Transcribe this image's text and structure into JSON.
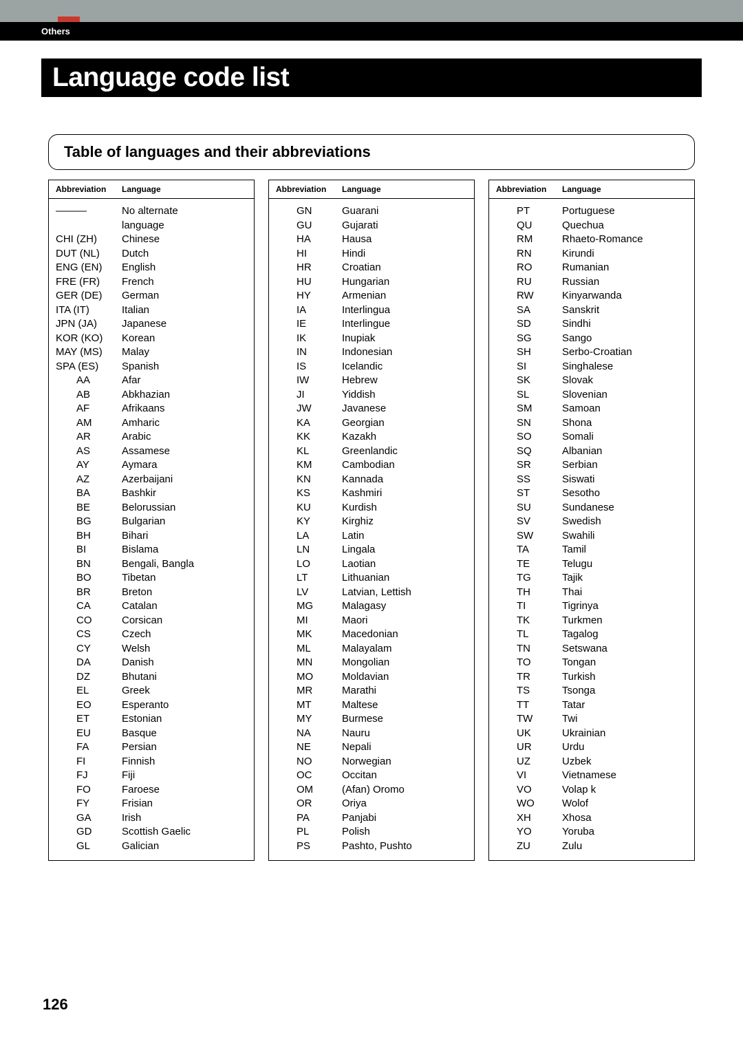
{
  "section_label": "Others",
  "title": "Language code list",
  "subtitle": "Table of languages and their abbreviations",
  "page_number": "126",
  "headers": {
    "abbr": "Abbreviation",
    "lang": "Language"
  },
  "columns": [
    [
      {
        "abbr": "———",
        "lang": "No alternate language",
        "long": true,
        "wrap": true
      },
      {
        "abbr": "CHI (ZH)",
        "lang": "Chinese",
        "long": true
      },
      {
        "abbr": "DUT (NL)",
        "lang": "Dutch",
        "long": true
      },
      {
        "abbr": "ENG (EN)",
        "lang": "English",
        "long": true
      },
      {
        "abbr": "FRE (FR)",
        "lang": "French",
        "long": true
      },
      {
        "abbr": "GER (DE)",
        "lang": "German",
        "long": true
      },
      {
        "abbr": "ITA (IT)",
        "lang": "Italian",
        "long": true
      },
      {
        "abbr": "JPN (JA)",
        "lang": "Japanese",
        "long": true
      },
      {
        "abbr": "KOR (KO)",
        "lang": "Korean",
        "long": true
      },
      {
        "abbr": "MAY (MS)",
        "lang": "Malay",
        "long": true
      },
      {
        "abbr": "SPA (ES)",
        "lang": "Spanish",
        "long": true
      },
      {
        "abbr": "AA",
        "lang": "Afar"
      },
      {
        "abbr": "AB",
        "lang": "Abkhazian"
      },
      {
        "abbr": "AF",
        "lang": "Afrikaans"
      },
      {
        "abbr": "AM",
        "lang": "Amharic"
      },
      {
        "abbr": "AR",
        "lang": "Arabic"
      },
      {
        "abbr": "AS",
        "lang": "Assamese"
      },
      {
        "abbr": "AY",
        "lang": "Aymara"
      },
      {
        "abbr": "AZ",
        "lang": "Azerbaijani"
      },
      {
        "abbr": "BA",
        "lang": "Bashkir"
      },
      {
        "abbr": "BE",
        "lang": "Belorussian"
      },
      {
        "abbr": "BG",
        "lang": "Bulgarian"
      },
      {
        "abbr": "BH",
        "lang": "Bihari"
      },
      {
        "abbr": "BI",
        "lang": "Bislama"
      },
      {
        "abbr": "BN",
        "lang": "Bengali, Bangla"
      },
      {
        "abbr": "BO",
        "lang": "Tibetan"
      },
      {
        "abbr": "BR",
        "lang": "Breton"
      },
      {
        "abbr": "CA",
        "lang": "Catalan"
      },
      {
        "abbr": "CO",
        "lang": "Corsican"
      },
      {
        "abbr": "CS",
        "lang": "Czech"
      },
      {
        "abbr": "CY",
        "lang": "Welsh"
      },
      {
        "abbr": "DA",
        "lang": "Danish"
      },
      {
        "abbr": "DZ",
        "lang": "Bhutani"
      },
      {
        "abbr": "EL",
        "lang": "Greek"
      },
      {
        "abbr": "EO",
        "lang": "Esperanto"
      },
      {
        "abbr": "ET",
        "lang": "Estonian"
      },
      {
        "abbr": "EU",
        "lang": "Basque"
      },
      {
        "abbr": "FA",
        "lang": "Persian"
      },
      {
        "abbr": "FI",
        "lang": "Finnish"
      },
      {
        "abbr": "FJ",
        "lang": "Fiji"
      },
      {
        "abbr": "FO",
        "lang": "Faroese"
      },
      {
        "abbr": "FY",
        "lang": "Frisian"
      },
      {
        "abbr": "GA",
        "lang": "Irish"
      },
      {
        "abbr": "GD",
        "lang": "Scottish Gaelic"
      },
      {
        "abbr": "GL",
        "lang": "Galician"
      }
    ],
    [
      {
        "abbr": "GN",
        "lang": "Guarani"
      },
      {
        "abbr": "GU",
        "lang": "Gujarati"
      },
      {
        "abbr": "HA",
        "lang": "Hausa"
      },
      {
        "abbr": "HI",
        "lang": "Hindi"
      },
      {
        "abbr": "HR",
        "lang": "Croatian"
      },
      {
        "abbr": "HU",
        "lang": "Hungarian"
      },
      {
        "abbr": "HY",
        "lang": "Armenian"
      },
      {
        "abbr": "IA",
        "lang": "Interlingua"
      },
      {
        "abbr": "IE",
        "lang": "Interlingue"
      },
      {
        "abbr": "IK",
        "lang": "Inupiak"
      },
      {
        "abbr": "IN",
        "lang": "Indonesian"
      },
      {
        "abbr": "IS",
        "lang": "Icelandic"
      },
      {
        "abbr": "IW",
        "lang": "Hebrew"
      },
      {
        "abbr": "JI",
        "lang": "Yiddish"
      },
      {
        "abbr": "JW",
        "lang": "Javanese"
      },
      {
        "abbr": "KA",
        "lang": "Georgian"
      },
      {
        "abbr": "KK",
        "lang": "Kazakh"
      },
      {
        "abbr": "KL",
        "lang": "Greenlandic"
      },
      {
        "abbr": "KM",
        "lang": "Cambodian"
      },
      {
        "abbr": "KN",
        "lang": "Kannada"
      },
      {
        "abbr": "KS",
        "lang": "Kashmiri"
      },
      {
        "abbr": "KU",
        "lang": "Kurdish"
      },
      {
        "abbr": "KY",
        "lang": "Kirghiz"
      },
      {
        "abbr": "LA",
        "lang": "Latin"
      },
      {
        "abbr": "LN",
        "lang": "Lingala"
      },
      {
        "abbr": "LO",
        "lang": "Laotian"
      },
      {
        "abbr": "LT",
        "lang": "Lithuanian"
      },
      {
        "abbr": "LV",
        "lang": "Latvian, Lettish"
      },
      {
        "abbr": "MG",
        "lang": "Malagasy"
      },
      {
        "abbr": "MI",
        "lang": "Maori"
      },
      {
        "abbr": "MK",
        "lang": "Macedonian"
      },
      {
        "abbr": "ML",
        "lang": "Malayalam"
      },
      {
        "abbr": "MN",
        "lang": "Mongolian"
      },
      {
        "abbr": "MO",
        "lang": "Moldavian"
      },
      {
        "abbr": "MR",
        "lang": "Marathi"
      },
      {
        "abbr": "MT",
        "lang": "Maltese"
      },
      {
        "abbr": "MY",
        "lang": "Burmese"
      },
      {
        "abbr": "NA",
        "lang": "Nauru"
      },
      {
        "abbr": "NE",
        "lang": "Nepali"
      },
      {
        "abbr": "NO",
        "lang": "Norwegian"
      },
      {
        "abbr": "OC",
        "lang": "Occitan"
      },
      {
        "abbr": "OM",
        "lang": "(Afan) Oromo"
      },
      {
        "abbr": "OR",
        "lang": "Oriya"
      },
      {
        "abbr": "PA",
        "lang": "Panjabi"
      },
      {
        "abbr": "PL",
        "lang": "Polish"
      },
      {
        "abbr": "PS",
        "lang": "Pashto, Pushto"
      }
    ],
    [
      {
        "abbr": "PT",
        "lang": "Portuguese"
      },
      {
        "abbr": "QU",
        "lang": "Quechua"
      },
      {
        "abbr": "RM",
        "lang": "Rhaeto-Romance"
      },
      {
        "abbr": "RN",
        "lang": "Kirundi"
      },
      {
        "abbr": "RO",
        "lang": "Rumanian"
      },
      {
        "abbr": "RU",
        "lang": "Russian"
      },
      {
        "abbr": "RW",
        "lang": "Kinyarwanda"
      },
      {
        "abbr": "SA",
        "lang": "Sanskrit"
      },
      {
        "abbr": "SD",
        "lang": "Sindhi"
      },
      {
        "abbr": "SG",
        "lang": "Sango"
      },
      {
        "abbr": "SH",
        "lang": "Serbo-Croatian"
      },
      {
        "abbr": "SI",
        "lang": "Singhalese"
      },
      {
        "abbr": "SK",
        "lang": "Slovak"
      },
      {
        "abbr": "SL",
        "lang": "Slovenian"
      },
      {
        "abbr": "SM",
        "lang": "Samoan"
      },
      {
        "abbr": "SN",
        "lang": "Shona"
      },
      {
        "abbr": "SO",
        "lang": "Somali"
      },
      {
        "abbr": "SQ",
        "lang": "Albanian"
      },
      {
        "abbr": "SR",
        "lang": "Serbian"
      },
      {
        "abbr": "SS",
        "lang": "Siswati"
      },
      {
        "abbr": "ST",
        "lang": "Sesotho"
      },
      {
        "abbr": "SU",
        "lang": "Sundanese"
      },
      {
        "abbr": "SV",
        "lang": "Swedish"
      },
      {
        "abbr": "SW",
        "lang": "Swahili"
      },
      {
        "abbr": "TA",
        "lang": "Tamil"
      },
      {
        "abbr": "TE",
        "lang": "Telugu"
      },
      {
        "abbr": "TG",
        "lang": "Tajik"
      },
      {
        "abbr": "TH",
        "lang": "Thai"
      },
      {
        "abbr": "TI",
        "lang": "Tigrinya"
      },
      {
        "abbr": "TK",
        "lang": "Turkmen"
      },
      {
        "abbr": "TL",
        "lang": "Tagalog"
      },
      {
        "abbr": "TN",
        "lang": "Setswana"
      },
      {
        "abbr": "TO",
        "lang": "Tongan"
      },
      {
        "abbr": "TR",
        "lang": "Turkish"
      },
      {
        "abbr": "TS",
        "lang": "Tsonga"
      },
      {
        "abbr": "TT",
        "lang": "Tatar"
      },
      {
        "abbr": "TW",
        "lang": "Twi"
      },
      {
        "abbr": "UK",
        "lang": "Ukrainian"
      },
      {
        "abbr": "UR",
        "lang": "Urdu"
      },
      {
        "abbr": "UZ",
        "lang": "Uzbek"
      },
      {
        "abbr": "VI",
        "lang": "Vietnamese"
      },
      {
        "abbr": "VO",
        "lang": "Volap k"
      },
      {
        "abbr": "WO",
        "lang": "Wolof"
      },
      {
        "abbr": "XH",
        "lang": "Xhosa"
      },
      {
        "abbr": "YO",
        "lang": "Yoruba"
      },
      {
        "abbr": "ZU",
        "lang": "Zulu"
      }
    ]
  ]
}
